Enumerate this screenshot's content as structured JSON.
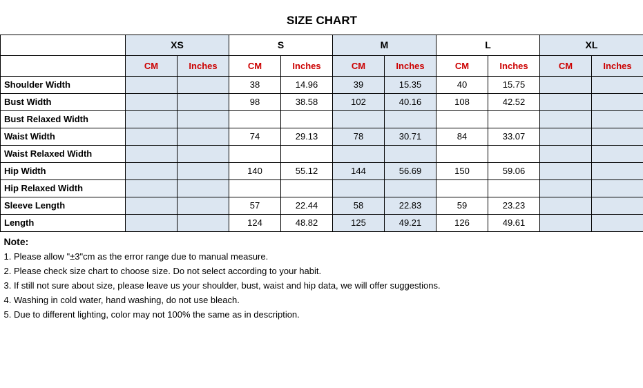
{
  "title": "SIZE CHART",
  "sizes": [
    "XS",
    "S",
    "M",
    "L",
    "XL"
  ],
  "units": {
    "cm": "CM",
    "in": "Inches"
  },
  "unit_colors": {
    "cm": "#cc0000",
    "in": "#cc0000"
  },
  "alt_row_bg": "#dce6f1",
  "border_color": "#000000",
  "background_color": "#ffffff",
  "font_family": "Arial",
  "title_fontsize": 17,
  "header_fontsize": 14,
  "cell_fontsize": 13,
  "label_col_width": 181,
  "data_col_width": 75,
  "measurements": [
    {
      "label": "Shoulder Width",
      "values": {
        "XS": [
          "",
          ""
        ],
        "S": [
          "38",
          "14.96"
        ],
        "M": [
          "39",
          "15.35"
        ],
        "L": [
          "40",
          "15.75"
        ],
        "XL": [
          "",
          ""
        ]
      }
    },
    {
      "label": "Bust Width",
      "values": {
        "XS": [
          "",
          ""
        ],
        "S": [
          "98",
          "38.58"
        ],
        "M": [
          "102",
          "40.16"
        ],
        "L": [
          "108",
          "42.52"
        ],
        "XL": [
          "",
          ""
        ]
      }
    },
    {
      "label": "Bust Relaxed Width",
      "values": {
        "XS": [
          "",
          ""
        ],
        "S": [
          "",
          ""
        ],
        "M": [
          "",
          ""
        ],
        "L": [
          "",
          ""
        ],
        "XL": [
          "",
          ""
        ]
      }
    },
    {
      "label": "Waist Width",
      "values": {
        "XS": [
          "",
          ""
        ],
        "S": [
          "74",
          "29.13"
        ],
        "M": [
          "78",
          "30.71"
        ],
        "L": [
          "84",
          "33.07"
        ],
        "XL": [
          "",
          ""
        ]
      }
    },
    {
      "label": "Waist Relaxed Width",
      "values": {
        "XS": [
          "",
          ""
        ],
        "S": [
          "",
          ""
        ],
        "M": [
          "",
          ""
        ],
        "L": [
          "",
          ""
        ],
        "XL": [
          "",
          ""
        ]
      }
    },
    {
      "label": "Hip Width",
      "values": {
        "XS": [
          "",
          ""
        ],
        "S": [
          "140",
          "55.12"
        ],
        "M": [
          "144",
          "56.69"
        ],
        "L": [
          "150",
          "59.06"
        ],
        "XL": [
          "",
          ""
        ]
      }
    },
    {
      "label": "Hip Relaxed Width",
      "values": {
        "XS": [
          "",
          ""
        ],
        "S": [
          "",
          ""
        ],
        "M": [
          "",
          ""
        ],
        "L": [
          "",
          ""
        ],
        "XL": [
          "",
          ""
        ]
      }
    },
    {
      "label": "Sleeve Length",
      "values": {
        "XS": [
          "",
          ""
        ],
        "S": [
          "57",
          "22.44"
        ],
        "M": [
          "58",
          "22.83"
        ],
        "L": [
          "59",
          "23.23"
        ],
        "XL": [
          "",
          ""
        ]
      }
    },
    {
      "label": "Length",
      "values": {
        "XS": [
          "",
          ""
        ],
        "S": [
          "124",
          "48.82"
        ],
        "M": [
          "125",
          "49.21"
        ],
        "L": [
          "126",
          "49.61"
        ],
        "XL": [
          "",
          ""
        ]
      }
    }
  ],
  "alt_columns": [
    "XS",
    "M",
    "XL"
  ],
  "notes": {
    "header": "Note:",
    "lines": [
      "1. Please allow \"±3\"cm as the error range due to manual measure.",
      "2. Please check size chart to choose size. Do not select according to your habit.",
      "3. If still not sure about size, please leave us your shoulder, bust, waist and hip data, we will offer suggestions.",
      "4. Washing in cold water, hand washing, do not use bleach.",
      "5. Due to different lighting, color may not 100% the same as in description."
    ]
  }
}
